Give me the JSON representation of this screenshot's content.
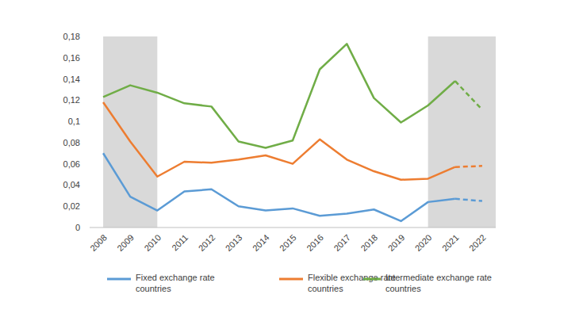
{
  "chart_data": {
    "type": "line",
    "categories": [
      "2008",
      "2009",
      "2010",
      "2011",
      "2012",
      "2013",
      "2014",
      "2015",
      "2016",
      "2017",
      "2018",
      "2019",
      "2020",
      "2021",
      "2022"
    ],
    "series": [
      {
        "name": "Fixed exchange rate countries",
        "color": "#5b9bd5",
        "values": [
          0.07,
          0.029,
          0.016,
          0.034,
          0.036,
          0.02,
          0.016,
          0.018,
          0.011,
          0.013,
          0.017,
          0.006,
          0.024,
          0.027,
          0.025
        ]
      },
      {
        "name": "Flexible exchange rate countries",
        "color": "#ed7d31",
        "values": [
          0.118,
          0.081,
          0.048,
          0.062,
          0.061,
          0.064,
          0.068,
          0.06,
          0.083,
          0.064,
          0.053,
          0.045,
          0.046,
          0.057,
          0.058
        ]
      },
      {
        "name": "Intermediate exchange rate countries",
        "color": "#70ad47",
        "values": [
          0.123,
          0.134,
          0.127,
          0.117,
          0.114,
          0.081,
          0.075,
          0.082,
          0.149,
          0.173,
          0.122,
          0.099,
          0.115,
          0.138,
          0.111
        ]
      }
    ],
    "forecast_from": "2021",
    "shaded_ranges": [
      [
        "2008",
        "2010"
      ],
      [
        "2020",
        "2022"
      ]
    ],
    "ylim": [
      0,
      0.18
    ],
    "yticks": [
      0,
      {
        "value": 0.02,
        "label": "0,02"
      },
      {
        "value": 0.04,
        "label": "0,04"
      },
      {
        "value": 0.06,
        "label": "0,06"
      },
      {
        "value": 0.08,
        "label": "0,08"
      },
      {
        "value": 0.1,
        "label": "0,1"
      },
      {
        "value": 0.12,
        "label": "0,12"
      },
      {
        "value": 0.14,
        "label": "0,14"
      },
      {
        "value": 0.16,
        "label": "0,16"
      },
      {
        "value": 0.18,
        "label": "0,18"
      }
    ],
    "grid": false,
    "legend": "bottom"
  }
}
